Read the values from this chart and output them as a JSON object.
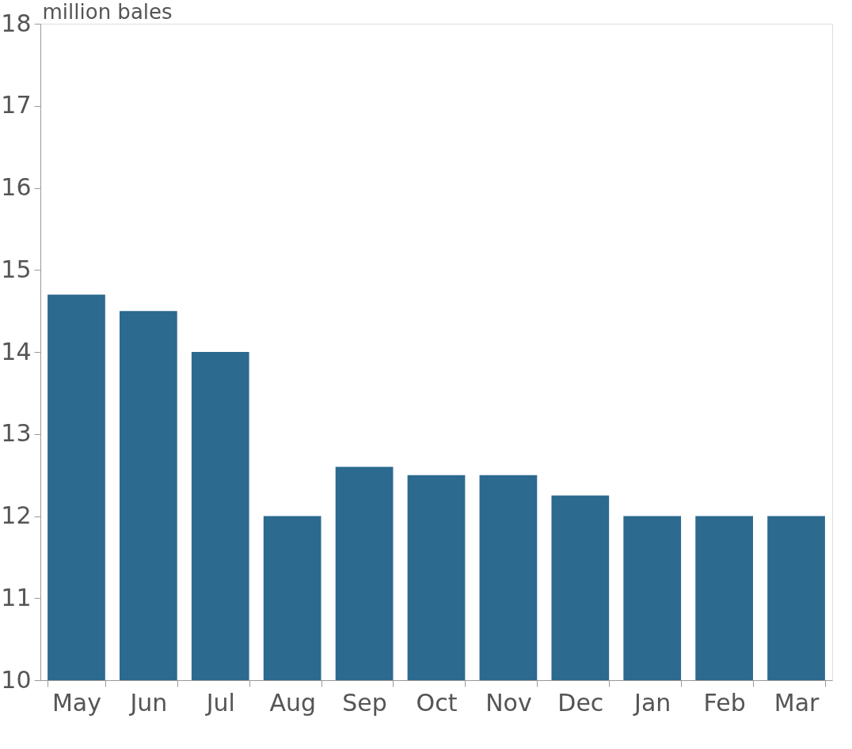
{
  "chart_data": {
    "type": "bar",
    "ylabel": "million bales",
    "categories": [
      "May",
      "Jun",
      "Jul",
      "Aug",
      "Sep",
      "Oct",
      "Nov",
      "Dec",
      "Jan",
      "Feb",
      "Mar"
    ],
    "values": [
      14.7,
      14.5,
      14.0,
      12.0,
      12.6,
      12.5,
      12.5,
      12.25,
      12.0,
      12.0,
      12.0
    ],
    "color": "#2c6a8f",
    "ylim": [
      10,
      18
    ],
    "yticks": [
      10,
      11,
      12,
      13,
      14,
      15,
      16,
      17,
      18
    ],
    "grid": false
  }
}
